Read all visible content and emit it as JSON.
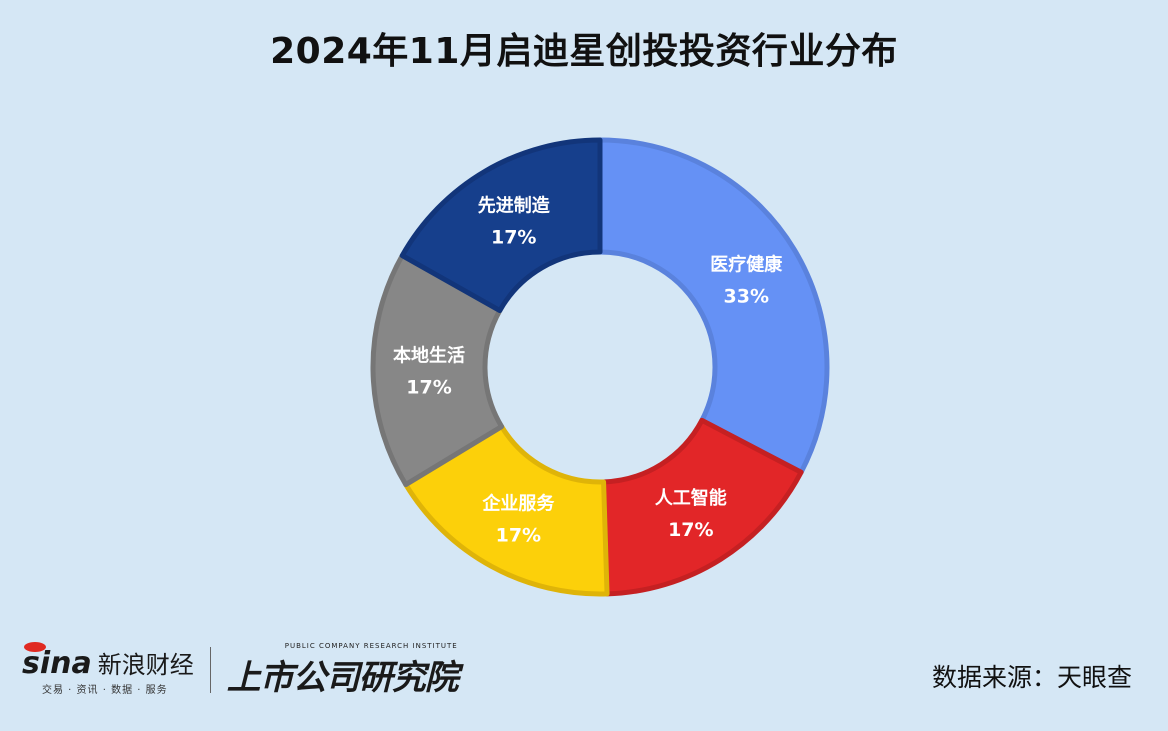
{
  "title": "2024年11月启迪星创投投资行业分布",
  "chart_data": {
    "type": "pie",
    "donut": true,
    "title": "2024年11月启迪星创投投资行业分布",
    "slices": [
      {
        "name": "医疗健康",
        "value": 33,
        "label": "33%",
        "color": "#6591f5",
        "stroke": "#5a82dd"
      },
      {
        "name": "人工智能",
        "value": 17,
        "label": "17%",
        "color": "#e22628",
        "stroke": "#c52022"
      },
      {
        "name": "企业服务",
        "value": 17,
        "label": "17%",
        "color": "#fcd00a",
        "stroke": "#dfb408"
      },
      {
        "name": "本地生活",
        "value": 17,
        "label": "17%",
        "color": "#878787",
        "stroke": "#767676"
      },
      {
        "name": "先进制造",
        "value": 17,
        "label": "17%",
        "color": "#163f8c",
        "stroke": "#12357a"
      }
    ],
    "start_angle": "12 o'clock",
    "direction": "clockwise",
    "legend": "none"
  },
  "footer": {
    "sina_logo": "sina",
    "sina_name": "新浪财经",
    "sina_sub": "交易 · 资讯 · 数据 · 服务",
    "sspri_en": "PUBLIC COMPANY RESEARCH INSTITUTE",
    "sspri_cn": "上市公司研究院",
    "source": "数据来源：天眼查"
  }
}
